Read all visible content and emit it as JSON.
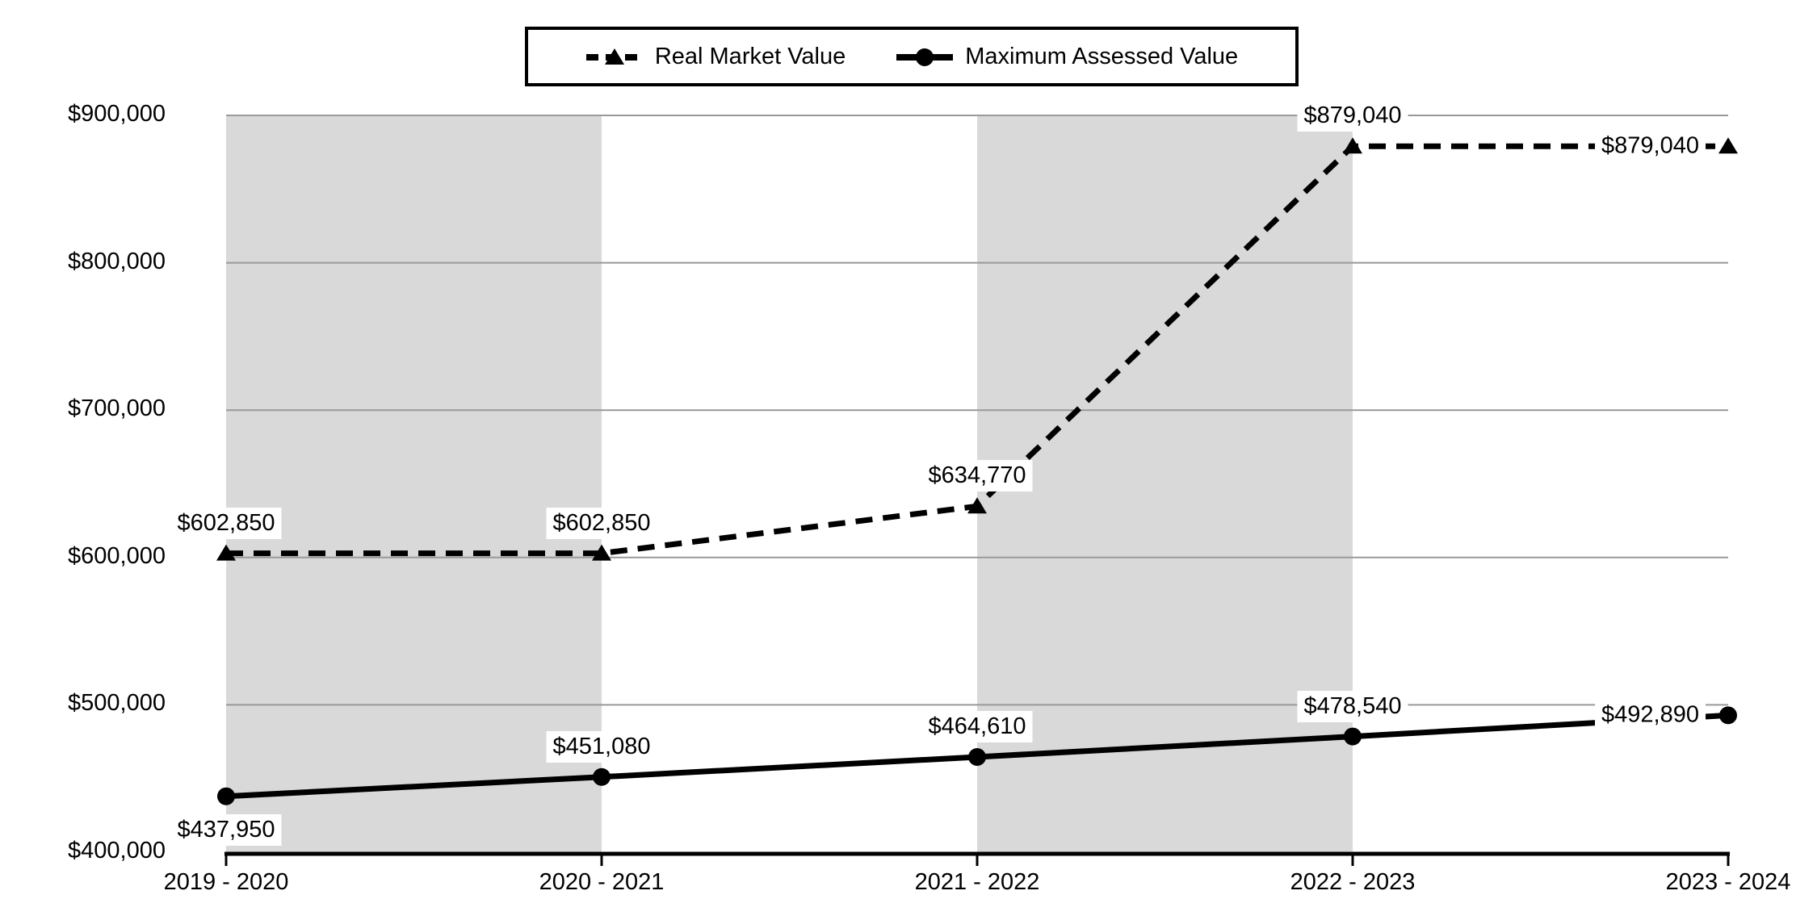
{
  "chart_data": {
    "type": "line",
    "title": "",
    "categories": [
      "2019 - 2020",
      "2020 - 2021",
      "2021 - 2022",
      "2022 - 2023",
      "2023 - 2024"
    ],
    "series": [
      {
        "name": "Real Market Value",
        "line_style": "dashed",
        "marker": "triangle",
        "values": [
          602850,
          602850,
          634770,
          879040,
          879040
        ],
        "point_labels": [
          "$602,850",
          "$602,850",
          "$634,770",
          "$879,040",
          "$879,040"
        ],
        "label_placements": [
          "above",
          "above",
          "above",
          "above",
          "left"
        ]
      },
      {
        "name": "Maximum Assessed Value",
        "line_style": "solid",
        "marker": "circle",
        "values": [
          437950,
          451080,
          464610,
          478540,
          492890
        ],
        "point_labels": [
          "$437,950",
          "$451,080",
          "$464,610",
          "$478,540",
          "$492,890"
        ],
        "label_placements": [
          "below",
          "above",
          "above",
          "above",
          "left"
        ]
      }
    ],
    "xlabel": "",
    "ylabel": "",
    "ylim": [
      400000,
      900000
    ],
    "y_ticks": [
      400000,
      500000,
      600000,
      700000,
      800000,
      900000
    ],
    "y_tick_labels": [
      "$400,000",
      "$500,000",
      "$600,000",
      "$700,000",
      "$800,000",
      "$900,000"
    ],
    "grid": "horizontal",
    "legend_position": "top-center",
    "shaded_intervals": [
      [
        0,
        1
      ],
      [
        2,
        3
      ]
    ],
    "colors": {
      "series": "#000000",
      "band": "#d9d9d9",
      "gridline": "#999999",
      "axis": "#000000",
      "background": "#ffffff",
      "label_background": "#ffffff"
    }
  }
}
